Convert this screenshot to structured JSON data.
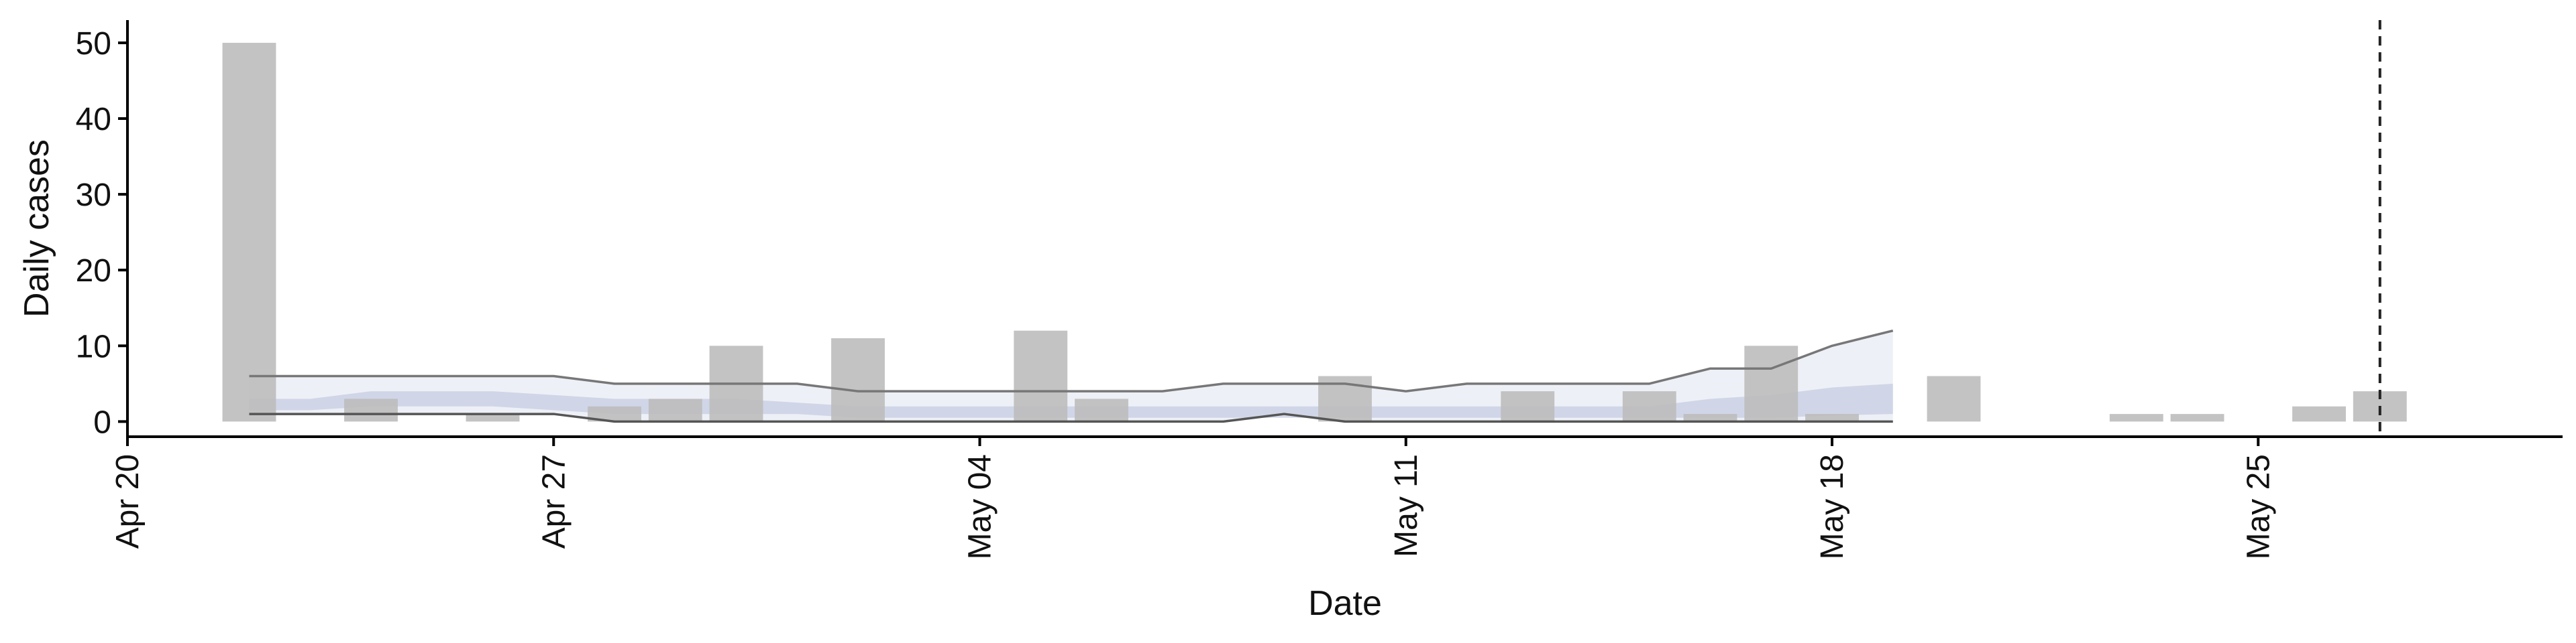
{
  "chart_data": {
    "type": "bar",
    "xlabel": "Date",
    "ylabel": "Daily cases",
    "x_domain": [
      "2020-04-20",
      "2020-05-30"
    ],
    "ylim": [
      -2,
      53
    ],
    "x_ticks": [
      {
        "date": "2020-04-20",
        "label": "Apr 20"
      },
      {
        "date": "2020-04-27",
        "label": "Apr 27"
      },
      {
        "date": "2020-05-04",
        "label": "May 04"
      },
      {
        "date": "2020-05-11",
        "label": "May 11"
      },
      {
        "date": "2020-05-18",
        "label": "May 18"
      },
      {
        "date": "2020-05-25",
        "label": "May 25"
      }
    ],
    "y_ticks": [
      0,
      10,
      20,
      30,
      40,
      50
    ],
    "grid": false,
    "legend": "none",
    "vline": "2020-05-27",
    "bars": {
      "color": "#bdbdbd",
      "dates": [
        "2020-04-22",
        "2020-04-24",
        "2020-04-26",
        "2020-04-28",
        "2020-04-29",
        "2020-04-30",
        "2020-05-02",
        "2020-05-05",
        "2020-05-06",
        "2020-05-10",
        "2020-05-13",
        "2020-05-15",
        "2020-05-16",
        "2020-05-17",
        "2020-05-18",
        "2020-05-20",
        "2020-05-23",
        "2020-05-24",
        "2020-05-26",
        "2020-05-27"
      ],
      "values": [
        50,
        3,
        1,
        2,
        3,
        10,
        11,
        12,
        3,
        6,
        4,
        4,
        1,
        10,
        1,
        6,
        1,
        1,
        2,
        4
      ]
    },
    "band": {
      "dates": [
        "2020-04-22",
        "2020-04-23",
        "2020-04-24",
        "2020-04-25",
        "2020-04-26",
        "2020-04-27",
        "2020-04-28",
        "2020-04-29",
        "2020-04-30",
        "2020-05-01",
        "2020-05-02",
        "2020-05-03",
        "2020-05-04",
        "2020-05-05",
        "2020-05-06",
        "2020-05-07",
        "2020-05-08",
        "2020-05-09",
        "2020-05-10",
        "2020-05-11",
        "2020-05-12",
        "2020-05-13",
        "2020-05-14",
        "2020-05-15",
        "2020-05-16",
        "2020-05-17",
        "2020-05-18",
        "2020-05-19"
      ],
      "upper": [
        6,
        6,
        6,
        6,
        6,
        6,
        5,
        5,
        5,
        5,
        4,
        4,
        4,
        4,
        4,
        4,
        5,
        5,
        5,
        4,
        5,
        5,
        5,
        5,
        7,
        7,
        10,
        12
      ],
      "inner_upper": [
        3,
        3,
        4,
        4,
        4,
        3.5,
        3,
        3,
        3,
        2.5,
        2,
        2,
        2,
        2,
        2,
        2,
        2,
        2,
        2,
        2,
        2,
        2,
        2,
        2,
        3,
        3.5,
        4.5,
        5
      ],
      "inner_lower": [
        1.5,
        1.5,
        2,
        2,
        2,
        1.5,
        1,
        1,
        1,
        1,
        0.5,
        0.5,
        0.5,
        0.5,
        0.5,
        0.5,
        0.5,
        0.5,
        0.5,
        0.5,
        0.5,
        0.5,
        0.5,
        0.5,
        0.5,
        0.5,
        0.8,
        1
      ],
      "lower": [
        1,
        1,
        1,
        1,
        1,
        1,
        0,
        0,
        0,
        0,
        0,
        0,
        0,
        0,
        0,
        0,
        0,
        1,
        0,
        0,
        0,
        0,
        0,
        0,
        0,
        0,
        0,
        0
      ],
      "outer_color": "#e8ebf4",
      "inner_color": "#c3cbe0",
      "line_color": "#777777"
    }
  }
}
